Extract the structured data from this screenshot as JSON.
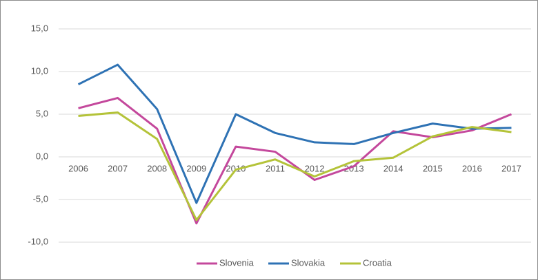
{
  "chart_data": {
    "type": "line",
    "categories": [
      "2006",
      "2007",
      "2008",
      "2009",
      "2010",
      "2011",
      "2012",
      "2013",
      "2014",
      "2015",
      "2016",
      "2017"
    ],
    "series": [
      {
        "name": "Slovenia",
        "color": "#c4489c",
        "values": [
          5.7,
          6.9,
          3.3,
          -7.8,
          1.2,
          0.6,
          -2.7,
          -1.1,
          3.0,
          2.3,
          3.1,
          5.0
        ]
      },
      {
        "name": "Slovakia",
        "color": "#2e72b4",
        "values": [
          8.5,
          10.8,
          5.6,
          -5.4,
          5.0,
          2.8,
          1.7,
          1.5,
          2.8,
          3.9,
          3.3,
          3.4
        ]
      },
      {
        "name": "Croatia",
        "color": "#b4c339",
        "values": [
          4.8,
          5.2,
          2.1,
          -7.4,
          -1.5,
          -0.3,
          -2.3,
          -0.5,
          -0.1,
          2.4,
          3.5,
          2.9
        ]
      }
    ],
    "ylim": [
      -10,
      15
    ],
    "yticks": [
      {
        "value": -10,
        "label": "-10,0"
      },
      {
        "value": -5,
        "label": "-5,0"
      },
      {
        "value": 0,
        "label": "0,0"
      },
      {
        "value": 5,
        "label": "5,0"
      },
      {
        "value": 10,
        "label": "10,0"
      },
      {
        "value": 15,
        "label": "15,0"
      }
    ],
    "grid": true,
    "legend": "bottom"
  }
}
